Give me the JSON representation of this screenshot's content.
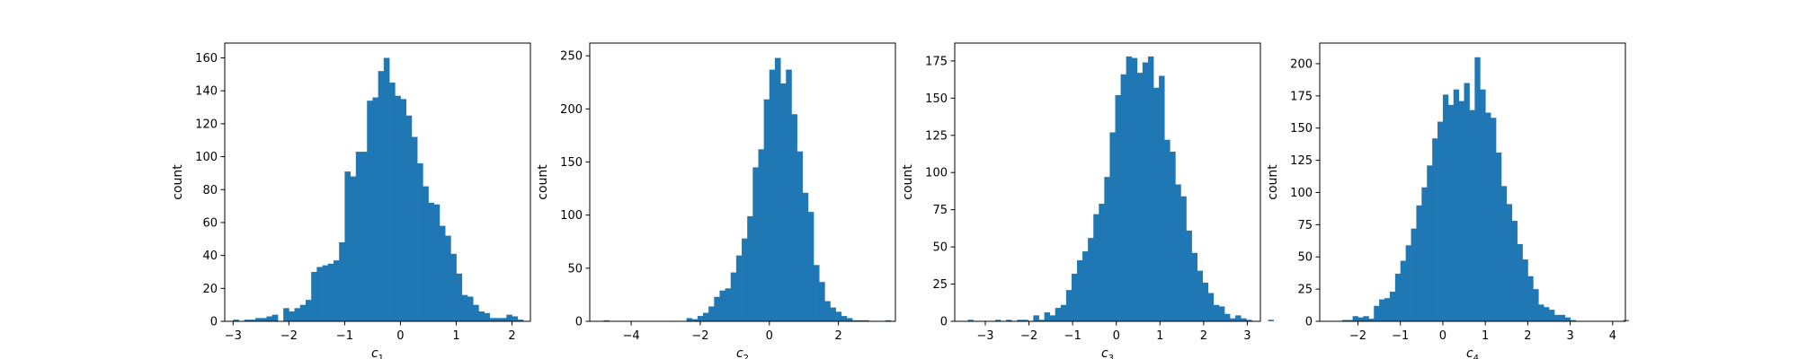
{
  "chart_data": [
    {
      "type": "bar",
      "title": "",
      "xlabel": "c",
      "xlabel_subscript": "1",
      "ylabel": "count",
      "xlim": [
        -3.15,
        2.33
      ],
      "ylim": [
        0,
        169
      ],
      "xticks": [
        -3,
        -2,
        -1,
        0,
        1,
        2
      ],
      "yticks": [
        0,
        20,
        40,
        60,
        80,
        100,
        120,
        140,
        160
      ],
      "bins": {
        "start": -3.0,
        "width": 0.1,
        "counts": [
          1,
          0,
          1,
          1,
          2,
          2,
          3,
          4,
          0,
          8,
          6,
          8,
          10,
          13,
          30,
          33,
          34,
          35,
          37,
          48,
          91,
          88,
          103,
          103,
          134,
          136,
          152,
          160,
          145,
          137,
          135,
          125,
          112,
          96,
          82,
          72,
          71,
          58,
          52,
          41,
          29,
          16,
          15,
          10,
          6,
          5,
          2,
          2,
          2,
          4,
          3,
          1
        ]
      },
      "grid": false,
      "legend": "none",
      "colors": {
        "bar": "#1f77b4"
      }
    },
    {
      "type": "bar",
      "title": "",
      "xlabel": "c",
      "xlabel_subscript": "2",
      "ylabel": "count",
      "xlim": [
        -5.2,
        3.65
      ],
      "ylim": [
        0,
        262
      ],
      "xticks": [
        -4,
        -2,
        0,
        2
      ],
      "yticks": [
        0,
        50,
        100,
        150,
        200,
        250
      ],
      "bins": {
        "start": -4.8,
        "width": 0.16,
        "counts": [
          1,
          0,
          0,
          0,
          0,
          0,
          0,
          0,
          0,
          0,
          0,
          0,
          0,
          0,
          0,
          3,
          2,
          5,
          8,
          14,
          23,
          29,
          31,
          46,
          62,
          78,
          99,
          145,
          162,
          209,
          237,
          248,
          224,
          237,
          195,
          160,
          121,
          103,
          53,
          37,
          19,
          13,
          9,
          5,
          3,
          1,
          1,
          1,
          0,
          0,
          0,
          1
        ]
      },
      "grid": false,
      "legend": "none",
      "colors": {
        "bar": "#1f77b4"
      }
    },
    {
      "type": "bar",
      "title": "",
      "xlabel": "c",
      "xlabel_subscript": "3",
      "ylabel": "count",
      "xlim": [
        -3.7,
        3.3
      ],
      "ylim": [
        0,
        187
      ],
      "xticks": [
        -3,
        -2,
        -1,
        0,
        1,
        2,
        3
      ],
      "yticks": [
        0,
        25,
        50,
        75,
        100,
        125,
        150,
        175
      ],
      "bins": {
        "start": -3.4,
        "width": 0.125,
        "counts": [
          1,
          0,
          0,
          0,
          0,
          1,
          0,
          1,
          0,
          1,
          1,
          0,
          4,
          1,
          6,
          4,
          9,
          11,
          21,
          32,
          41,
          47,
          56,
          72,
          79,
          97,
          127,
          152,
          166,
          178,
          177,
          167,
          174,
          178,
          157,
          165,
          122,
          114,
          92,
          84,
          61,
          46,
          34,
          26,
          19,
          11,
          10,
          5,
          2,
          4,
          2,
          1,
          0,
          0,
          0,
          1
        ]
      },
      "grid": false,
      "legend": "none",
      "colors": {
        "bar": "#1f77b4"
      }
    },
    {
      "type": "bar",
      "title": "",
      "xlabel": "c",
      "xlabel_subscript": "4",
      "ylabel": "count",
      "xlim": [
        -2.9,
        4.3
      ],
      "ylim": [
        0,
        216
      ],
      "xticks": [
        -2,
        -1,
        0,
        1,
        2,
        3,
        4
      ],
      "yticks": [
        0,
        25,
        50,
        75,
        100,
        125,
        150,
        175,
        200
      ],
      "bins": {
        "start": -2.5,
        "width": 0.125,
        "counts": [
          0,
          1,
          1,
          4,
          3,
          4,
          2,
          12,
          17,
          18,
          23,
          37,
          47,
          59,
          72,
          90,
          104,
          121,
          142,
          155,
          176,
          168,
          180,
          171,
          185,
          164,
          205,
          180,
          162,
          158,
          131,
          105,
          91,
          78,
          60,
          48,
          35,
          25,
          13,
          11,
          9,
          5,
          5,
          3,
          1,
          0,
          0,
          0,
          0,
          0,
          0,
          0,
          0,
          0,
          1
        ]
      },
      "grid": false,
      "legend": "none",
      "colors": {
        "bar": "#1f77b4"
      }
    }
  ]
}
